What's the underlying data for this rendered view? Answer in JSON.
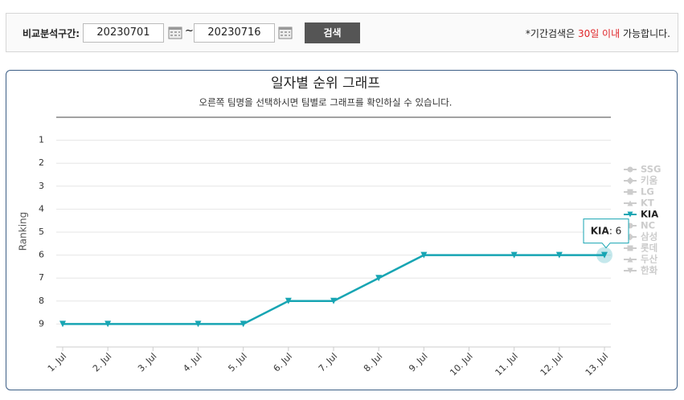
{
  "search": {
    "label": "비교분석구간:",
    "start": "20230701",
    "separator": "~",
    "end": "20230716",
    "button": "검색",
    "note_prefix": "*기간검색은 ",
    "note_highlight": "30일 이내",
    "note_suffix": " 가능합니다."
  },
  "chart_data": {
    "type": "line",
    "title": "일자별 순위 그래프",
    "subtitle": "오른쪽 팀명을 선택하시면 팀별로 그래프를 확인하실 수 있습니다.",
    "y_label": "Ranking",
    "categories": [
      "1. Jul",
      "2. Jul",
      "3. Jul",
      "4. Jul",
      "5. Jul",
      "6. Jul",
      "7. Jul",
      "8. Jul",
      "9. Jul",
      "10. Jul",
      "11. Jul",
      "12. Jul",
      "13. Jul"
    ],
    "ylim": [
      0,
      10
    ],
    "y_reversed": true,
    "yticks": [
      1,
      2,
      3,
      4,
      5,
      6,
      7,
      8,
      9
    ],
    "grid": true,
    "connect_nulls": true,
    "legend": "right",
    "series": [
      {
        "name": "SSG",
        "color": "#cccccc",
        "marker": "circle",
        "visible": false
      },
      {
        "name": "키움",
        "color": "#cccccc",
        "marker": "diamond",
        "visible": false
      },
      {
        "name": "LG",
        "color": "#cccccc",
        "marker": "square",
        "visible": false
      },
      {
        "name": "KT",
        "color": "#cccccc",
        "marker": "triangle",
        "visible": false
      },
      {
        "name": "KIA",
        "color": "#17a5b3",
        "marker": "triangle-down",
        "visible": true,
        "values": [
          9,
          9,
          null,
          9,
          9,
          8,
          8,
          7,
          6,
          null,
          6,
          6,
          6
        ]
      },
      {
        "name": "NC",
        "color": "#cccccc",
        "marker": "circle",
        "visible": false
      },
      {
        "name": "삼성",
        "color": "#cccccc",
        "marker": "diamond",
        "visible": false
      },
      {
        "name": "롯데",
        "color": "#cccccc",
        "marker": "square",
        "visible": false
      },
      {
        "name": "두산",
        "color": "#cccccc",
        "marker": "triangle",
        "visible": false
      },
      {
        "name": "한화",
        "color": "#cccccc",
        "marker": "triangle-down",
        "visible": false
      }
    ],
    "tooltip": {
      "series": 4,
      "index": 12
    }
  }
}
